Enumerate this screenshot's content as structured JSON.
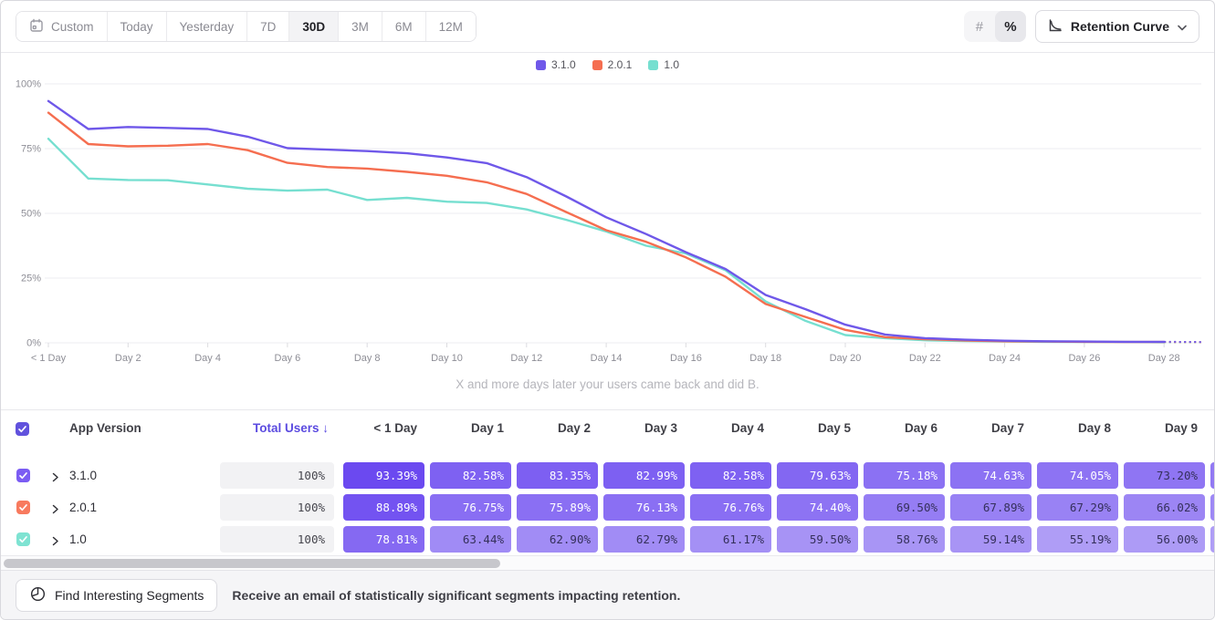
{
  "toolbar": {
    "date_ranges": [
      {
        "label": "Custom",
        "icon": "calendar",
        "selected": false
      },
      {
        "label": "Today",
        "selected": false
      },
      {
        "label": "Yesterday",
        "selected": false
      },
      {
        "label": "7D",
        "selected": false
      },
      {
        "label": "30D",
        "selected": true
      },
      {
        "label": "3M",
        "selected": false
      },
      {
        "label": "6M",
        "selected": false
      },
      {
        "label": "12M",
        "selected": false
      }
    ],
    "view_toggle": [
      {
        "name": "number-view",
        "glyph": "#",
        "selected": false
      },
      {
        "name": "percent-view",
        "glyph": "%",
        "selected": true
      }
    ],
    "chart_type_selector": {
      "label": "Retention Curve"
    }
  },
  "chart_data": {
    "type": "line",
    "subtitle": "X and more days later your users came back and did B.",
    "y_tick_labels": [
      "100%",
      "75%",
      "50%",
      "25%",
      "0%"
    ],
    "ylim": [
      0,
      100
    ],
    "x_tick_labels": [
      "< 1 Day",
      "Day 2",
      "Day 4",
      "Day 6",
      "Day 8",
      "Day 10",
      "Day 12",
      "Day 14",
      "Day 16",
      "Day 18",
      "Day 20",
      "Day 22",
      "Day 24",
      "Day 26",
      "Day 28"
    ],
    "legend_position": "top-center",
    "grid": "horizontal",
    "projection_dashed_after_day": 28,
    "series": [
      {
        "name": "3.1.0",
        "color": "#6F58E9",
        "values": [
          93.39,
          82.58,
          83.35,
          82.99,
          82.58,
          79.63,
          75.18,
          74.63,
          74.05,
          73.2,
          71.6,
          69.4,
          64.0,
          56.5,
          48.5,
          42.0,
          35.0,
          28.5,
          18.5,
          13.0,
          7.0,
          3.2,
          1.8,
          1.2,
          0.8,
          0.6,
          0.5,
          0.4,
          0.4
        ]
      },
      {
        "name": "2.0.1",
        "color": "#F56E50",
        "values": [
          88.89,
          76.75,
          75.89,
          76.13,
          76.76,
          74.4,
          69.5,
          67.89,
          67.29,
          66.02,
          64.5,
          62.0,
          57.5,
          50.5,
          43.5,
          39.0,
          33.0,
          25.5,
          15.0,
          10.0,
          5.0,
          2.2,
          1.4,
          0.9,
          0.6,
          0.5,
          0.4,
          0.3,
          0.3
        ]
      },
      {
        "name": "1.0",
        "color": "#76DFD0",
        "values": [
          78.81,
          63.44,
          62.9,
          62.79,
          61.17,
          59.5,
          58.76,
          59.14,
          55.19,
          56.0,
          54.5,
          54.0,
          51.5,
          47.5,
          43.0,
          37.5,
          34.5,
          28.0,
          16.0,
          8.5,
          3.0,
          1.8,
          1.0,
          0.7,
          0.5,
          0.4,
          0.3,
          0.3,
          0.2
        ]
      }
    ]
  },
  "table": {
    "select_all": {
      "checked": true,
      "color": "#6152DD"
    },
    "columns": {
      "app_version": "App Version",
      "total_users": "Total Users",
      "sort_indicator": "↓",
      "days": [
        "< 1 Day",
        "Day 1",
        "Day 2",
        "Day 3",
        "Day 4",
        "Day 5",
        "Day 6",
        "Day 7",
        "Day 8",
        "Day 9"
      ]
    },
    "rows": [
      {
        "version": "3.1.0",
        "checked": true,
        "color": "#7B5CF3",
        "total_users": "100%",
        "cells": [
          93.39,
          82.58,
          83.35,
          82.99,
          82.58,
          79.63,
          75.18,
          74.63,
          74.05,
          73.2
        ]
      },
      {
        "version": "2.0.1",
        "checked": true,
        "color": "#F87A5E",
        "total_users": "100%",
        "cells": [
          88.89,
          76.75,
          75.89,
          76.13,
          76.76,
          74.4,
          69.5,
          67.89,
          67.29,
          66.02
        ]
      },
      {
        "version": "1.0",
        "checked": true,
        "color": "#7EE3D2",
        "total_users": "100%",
        "cells": [
          78.81,
          63.44,
          62.9,
          62.79,
          61.17,
          59.5,
          58.76,
          59.14,
          55.19,
          56.0
        ]
      }
    ],
    "cell_style": {
      "dark": "#6A48F0",
      "light": "#AF9DF6",
      "value_range": [
        55,
        94
      ],
      "white_text_min": 74
    }
  },
  "footer": {
    "button_label": "Find Interesting Segments",
    "note": "Receive an email of statistically significant segments impacting retention."
  }
}
